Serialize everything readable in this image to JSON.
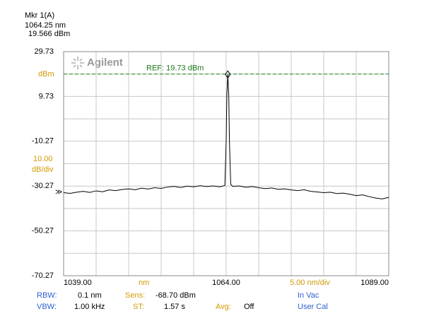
{
  "chart_data": {
    "type": "line",
    "brand": "Agilent",
    "marker": {
      "title": "Mkr 1(A)",
      "x": 1064.25,
      "x_label": "1064.25 nm",
      "value": 19.566,
      "value_label": "19.566 dBm"
    },
    "reference": {
      "value": 19.73,
      "label": "REF: 19.73 dBm"
    },
    "y_unit": "dBm",
    "y_scale": {
      "value": "10.00",
      "unit": "dB/div"
    },
    "x_unit": "nm",
    "x_scale": "5.00 nm/div",
    "xlim": [
      1039,
      1089
    ],
    "ylim": [
      -70.27,
      29.73
    ],
    "xticks": [
      {
        "value": 1039,
        "label": "1039.00"
      },
      {
        "value": 1064,
        "label": "1064.00"
      },
      {
        "value": 1089,
        "label": "1089.00"
      }
    ],
    "xgrid": [
      1039,
      1044,
      1049,
      1054,
      1059,
      1064,
      1069,
      1074,
      1079,
      1084,
      1089
    ],
    "yticks": [
      -70.27,
      -50.27,
      -30.27,
      -10.27,
      9.73,
      29.73
    ],
    "ygrid": [
      -70.27,
      -60.27,
      -50.27,
      -40.27,
      -30.27,
      -20.27,
      -10.27,
      -0.27,
      9.73,
      19.73,
      29.73
    ],
    "grid": true,
    "color": "#000000",
    "x": [
      1039,
      1040,
      1041,
      1042,
      1043,
      1044,
      1045,
      1046,
      1047,
      1048,
      1049,
      1050,
      1051,
      1052,
      1053,
      1054,
      1055,
      1056,
      1057,
      1058,
      1059,
      1060,
      1061,
      1062,
      1063,
      1063.8,
      1064.0,
      1064.1,
      1064.25,
      1064.4,
      1064.5,
      1064.7,
      1065,
      1066,
      1067,
      1068,
      1069,
      1070,
      1071,
      1072,
      1073,
      1074,
      1075,
      1076,
      1077,
      1078,
      1079,
      1080,
      1081,
      1082,
      1083,
      1084,
      1085,
      1086,
      1087,
      1088,
      1089
    ],
    "values": [
      -33.2,
      -33.5,
      -33.0,
      -32.6,
      -33.1,
      -32.4,
      -32.8,
      -32.0,
      -32.3,
      -31.8,
      -31.5,
      -31.9,
      -31.2,
      -31.6,
      -31.0,
      -31.3,
      -30.7,
      -30.4,
      -30.9,
      -30.3,
      -30.6,
      -30.1,
      -30.5,
      -30.2,
      -30.6,
      -30.0,
      -10,
      10,
      19.566,
      10,
      -10,
      -29.5,
      -30.4,
      -30.2,
      -30.8,
      -30.5,
      -31.0,
      -31.4,
      -31.1,
      -31.7,
      -31.5,
      -32.0,
      -32.3,
      -31.9,
      -32.6,
      -32.9,
      -33.2,
      -33.0,
      -33.6,
      -33.4,
      -33.9,
      -34.5,
      -34.2,
      -35.0,
      -35.6,
      -36.0,
      -35.3
    ]
  },
  "settings": {
    "rbw": {
      "label": "RBW:",
      "value": "0.1 nm"
    },
    "vbw": {
      "label": "VBW:",
      "value": "1.00 kHz"
    },
    "sens": {
      "label": "Sens:",
      "value": "-68.70 dBm"
    },
    "st": {
      "label": "ST:",
      "value": "1.57 s"
    },
    "avg": {
      "label": "Avg:",
      "value": "Off"
    },
    "medium": "In Vac",
    "calibration": "User Cal"
  }
}
